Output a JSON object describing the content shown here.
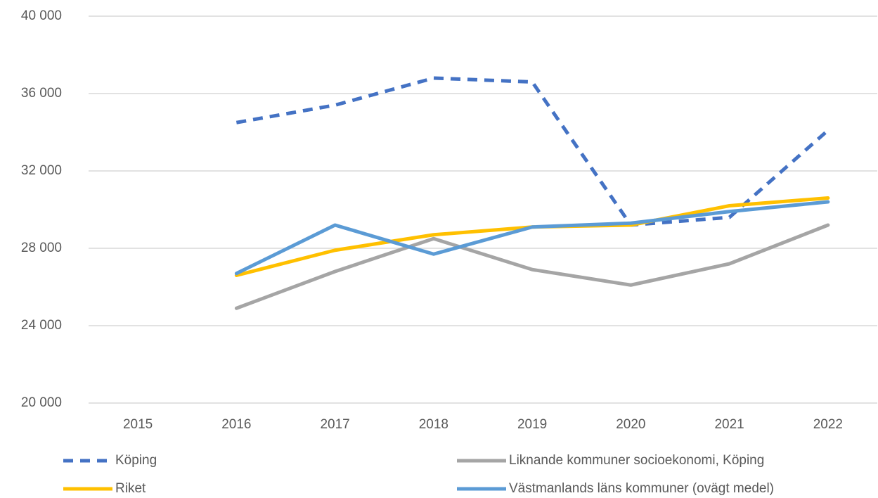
{
  "chart_data": {
    "type": "line",
    "categories": [
      "2015",
      "2016",
      "2017",
      "2018",
      "2019",
      "2020",
      "2021",
      "2022"
    ],
    "series": [
      {
        "name": "Köping",
        "color": "#4472c4",
        "dashed": true,
        "values": [
          null,
          34500,
          35400,
          36800,
          36600,
          29200,
          29600,
          34100
        ]
      },
      {
        "name": "Liknande kommuner socioekonomi, Köping",
        "color": "#a5a5a5",
        "dashed": false,
        "values": [
          null,
          24900,
          26800,
          28500,
          26900,
          26100,
          27200,
          29200
        ]
      },
      {
        "name": "Riket",
        "color": "#ffc000",
        "dashed": false,
        "values": [
          null,
          26600,
          27900,
          28700,
          29100,
          29200,
          30200,
          30600
        ]
      },
      {
        "name": "Västmanlands läns kommuner (ovägt medel)",
        "color": "#5b9bd5",
        "dashed": false,
        "values": [
          null,
          26700,
          29200,
          27700,
          29100,
          29300,
          29900,
          30400
        ]
      }
    ],
    "ylim": [
      20000,
      40000
    ],
    "yticks": [
      {
        "value": 20000,
        "label": "20 000"
      },
      {
        "value": 24000,
        "label": "24 000"
      },
      {
        "value": 28000,
        "label": "28 000"
      },
      {
        "value": 32000,
        "label": "32 000"
      },
      {
        "value": 36000,
        "label": "36 000"
      },
      {
        "value": 40000,
        "label": "40 000"
      }
    ],
    "grid": true,
    "legend": "bottom"
  }
}
